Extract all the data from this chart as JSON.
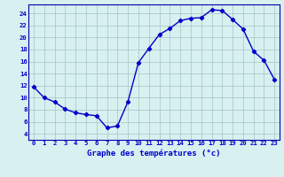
{
  "hours": [
    0,
    1,
    2,
    3,
    4,
    5,
    6,
    7,
    8,
    9,
    10,
    11,
    12,
    13,
    14,
    15,
    16,
    17,
    18,
    19,
    20,
    21,
    22,
    23
  ],
  "temps": [
    11.8,
    10.0,
    9.3,
    8.1,
    7.5,
    7.2,
    7.0,
    5.0,
    5.3,
    9.3,
    15.8,
    18.2,
    20.5,
    21.5,
    22.8,
    23.2,
    23.3,
    24.6,
    24.5,
    23.0,
    21.4,
    17.7,
    16.2,
    13.0
  ],
  "xlabel": "Graphe des températures (°c)",
  "ylim": [
    3,
    25.5
  ],
  "xlim": [
    -0.5,
    23.5
  ],
  "yticks": [
    4,
    6,
    8,
    10,
    12,
    14,
    16,
    18,
    20,
    22,
    24
  ],
  "xticks": [
    0,
    1,
    2,
    3,
    4,
    5,
    6,
    7,
    8,
    9,
    10,
    11,
    12,
    13,
    14,
    15,
    16,
    17,
    18,
    19,
    20,
    21,
    22,
    23
  ],
  "line_color": "#0000cc",
  "marker": "D",
  "marker_size": 2.2,
  "bg_color": "#d8f0f0",
  "grid_color": "#aacccc",
  "axis_label_color": "#0000cc",
  "tick_label_color": "#0000cc",
  "spine_color": "#0000aa",
  "tick_fontsize": 5.2,
  "xlabel_fontsize": 6.5,
  "linewidth": 1.0
}
